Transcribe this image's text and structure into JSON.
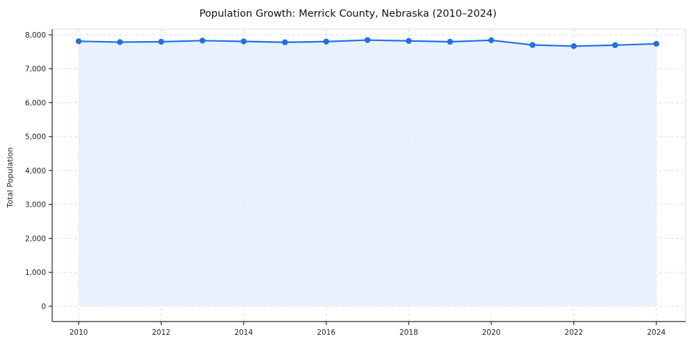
{
  "chart_data": {
    "type": "area",
    "title": "Population Growth: Merrick County, Nebraska (2010–2024)",
    "ylabel": "Total Population",
    "xlabel": "",
    "x": [
      2010,
      2011,
      2012,
      2013,
      2014,
      2015,
      2016,
      2017,
      2018,
      2019,
      2020,
      2021,
      2022,
      2023,
      2024
    ],
    "values": [
      7810,
      7785,
      7795,
      7830,
      7805,
      7780,
      7800,
      7845,
      7820,
      7795,
      7840,
      7700,
      7665,
      7695,
      7735
    ],
    "ylim": [
      0,
      8000
    ],
    "ytick_step": 1000,
    "yticks": [
      0,
      1000,
      2000,
      3000,
      4000,
      5000,
      6000,
      7000,
      8000
    ],
    "xticks": [
      2010,
      2012,
      2014,
      2016,
      2018,
      2020,
      2022,
      2024
    ],
    "grid": true,
    "legend": "none",
    "line_color": "#1f6fe8",
    "marker_color": "#1f6fe8",
    "fill_color": "#e4eefc",
    "grid_color": "#c9c9c9",
    "spine_color": "#262626",
    "box_color": "#d9d9d9"
  }
}
